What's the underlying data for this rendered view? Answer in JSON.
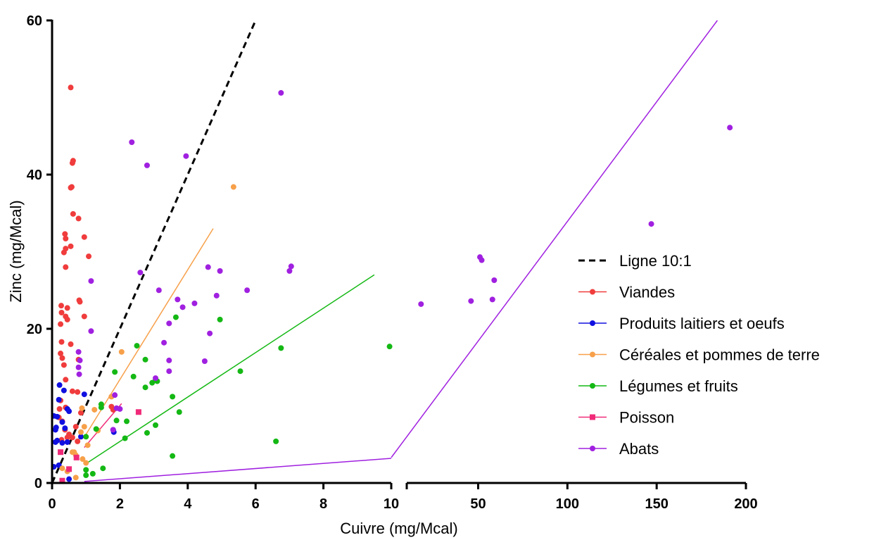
{
  "chart_data": {
    "type": "scatter",
    "title": "",
    "xlabel": "Cuivre (mg/Mcal)",
    "ylabel": "Zinc (mg/Mcal)",
    "ylim": [
      0,
      60
    ],
    "y_ticks": [
      "0",
      "20",
      "40",
      "60"
    ],
    "x_axis_segments": [
      {
        "range": [
          0,
          10
        ],
        "ticks": [
          "0",
          "2",
          "4",
          "6",
          "8",
          "10"
        ]
      },
      {
        "range": [
          10,
          200
        ],
        "ticks": [
          "50",
          "100",
          "150",
          "200"
        ]
      }
    ],
    "grid": false,
    "legend_position": "right",
    "legend": [
      {
        "label": "Ligne 10:1",
        "color": "#000000",
        "style": "dashed"
      },
      {
        "label": "Viandes",
        "color": "#f03c3c",
        "marker": "circle"
      },
      {
        "label": "Produits laitiers et oeufs",
        "color": "#1010e0",
        "marker": "circle"
      },
      {
        "label": "Céréales et pommes de terre",
        "color": "#f7a04a",
        "marker": "circle"
      },
      {
        "label": "Légumes et fruits",
        "color": "#14b814",
        "marker": "circle"
      },
      {
        "label": "Poisson",
        "color": "#f02a78",
        "marker": "square"
      },
      {
        "label": "Abats",
        "color": "#a020e0",
        "marker": "circle"
      }
    ],
    "reference_line": {
      "name": "Ligne 10:1",
      "x": [
        0,
        6
      ],
      "y": [
        0,
        60
      ]
    },
    "series": [
      {
        "name": "Viandes",
        "color": "#f03c3c",
        "marker": "circle",
        "points": [
          [
            0.55,
            51.3
          ],
          [
            0.62,
            41.8
          ],
          [
            0.6,
            41.5
          ],
          [
            0.55,
            38.3
          ],
          [
            0.58,
            38.4
          ],
          [
            0.62,
            34.9
          ],
          [
            0.78,
            34.3
          ],
          [
            0.38,
            32.3
          ],
          [
            0.4,
            31.7
          ],
          [
            0.95,
            31.9
          ],
          [
            0.55,
            30.7
          ],
          [
            0.4,
            30.4
          ],
          [
            0.35,
            29.9
          ],
          [
            1.08,
            29.4
          ],
          [
            0.4,
            28.0
          ],
          [
            0.27,
            23.0
          ],
          [
            0.45,
            22.7
          ],
          [
            0.28,
            22.1
          ],
          [
            0.4,
            21.6
          ],
          [
            0.45,
            21.2
          ],
          [
            0.95,
            21.6
          ],
          [
            0.8,
            23.7
          ],
          [
            0.82,
            23.5
          ],
          [
            0.25,
            20.6
          ],
          [
            0.28,
            18.3
          ],
          [
            0.55,
            18.0
          ],
          [
            0.25,
            16.8
          ],
          [
            0.3,
            16.2
          ],
          [
            0.35,
            15.3
          ],
          [
            0.78,
            16.0
          ],
          [
            0.4,
            13.4
          ],
          [
            0.6,
            11.9
          ],
          [
            0.25,
            10.7
          ],
          [
            0.75,
            11.8
          ],
          [
            0.22,
            9.6
          ],
          [
            0.4,
            9.8
          ],
          [
            0.2,
            8.5
          ],
          [
            0.3,
            8.0
          ],
          [
            0.85,
            9.1
          ],
          [
            0.38,
            6.9
          ],
          [
            0.5,
            6.3
          ],
          [
            0.28,
            5.6
          ],
          [
            0.45,
            5.9
          ],
          [
            0.6,
            5.9
          ],
          [
            0.75,
            5.4
          ],
          [
            0.7,
            7.3
          ],
          [
            1.75,
            9.9
          ],
          [
            1.8,
            9.5
          ]
        ]
      },
      {
        "name": "Produits laitiers et oeufs",
        "color": "#1010e0",
        "marker": "circle",
        "points": [
          [
            0.22,
            12.7
          ],
          [
            0.35,
            12.0
          ],
          [
            0.95,
            11.5
          ],
          [
            0.2,
            10.8
          ],
          [
            0.05,
            8.7
          ],
          [
            0.15,
            8.6
          ],
          [
            0.3,
            7.9
          ],
          [
            0.12,
            7.2
          ],
          [
            0.1,
            6.9
          ],
          [
            0.38,
            7.1
          ],
          [
            0.5,
            9.3
          ],
          [
            0.85,
            6.0
          ],
          [
            0.1,
            5.3
          ],
          [
            0.15,
            5.5
          ],
          [
            0.3,
            5.2
          ],
          [
            0.05,
            2.1
          ],
          [
            0.2,
            2.3
          ],
          [
            0.5,
            0.5
          ],
          [
            1.8,
            6.9
          ],
          [
            1.82,
            6.6
          ],
          [
            0.45,
            5.3
          ],
          [
            0.45,
            9.6
          ]
        ]
      },
      {
        "name": "Céréales et pommes de terre",
        "color": "#f7a04a",
        "marker": "circle",
        "points": [
          [
            5.35,
            38.4
          ],
          [
            2.05,
            17.0
          ],
          [
            1.25,
            9.5
          ],
          [
            1.75,
            11.2
          ],
          [
            0.95,
            7.3
          ],
          [
            1.35,
            6.8
          ],
          [
            0.85,
            6.6
          ],
          [
            0.3,
            1.9
          ],
          [
            0.45,
            1.5
          ],
          [
            0.65,
            4.0
          ],
          [
            0.7,
            3.6
          ],
          [
            0.9,
            3.1
          ],
          [
            1.05,
            4.9
          ],
          [
            0.7,
            0.7
          ],
          [
            1.0,
            2.6
          ],
          [
            0.88,
            9.7
          ],
          [
            0.6,
            4.0
          ]
        ]
      },
      {
        "name": "Légumes et fruits",
        "color": "#14b814",
        "marker": "circle",
        "points": [
          [
            9.95,
            17.7
          ],
          [
            6.75,
            17.5
          ],
          [
            5.55,
            14.5
          ],
          [
            4.95,
            21.2
          ],
          [
            3.65,
            21.5
          ],
          [
            3.55,
            11.2
          ],
          [
            3.55,
            3.5
          ],
          [
            2.5,
            17.8
          ],
          [
            2.75,
            16.0
          ],
          [
            2.95,
            13.0
          ],
          [
            3.05,
            13.3
          ],
          [
            3.1,
            13.2
          ],
          [
            2.75,
            12.4
          ],
          [
            2.4,
            13.8
          ],
          [
            1.85,
            14.4
          ],
          [
            1.45,
            9.8
          ],
          [
            1.9,
            8.1
          ],
          [
            2.2,
            8.0
          ],
          [
            2.8,
            6.5
          ],
          [
            3.05,
            7.5
          ],
          [
            3.75,
            9.2
          ],
          [
            2.15,
            5.8
          ],
          [
            1.3,
            7.0
          ],
          [
            1.0,
            6.0
          ],
          [
            1.0,
            1.7
          ],
          [
            1.0,
            1.0
          ],
          [
            1.2,
            1.2
          ],
          [
            1.5,
            1.9
          ],
          [
            6.6,
            5.4
          ],
          [
            1.45,
            10.2
          ]
        ]
      },
      {
        "name": "Poisson",
        "color": "#f02a78",
        "marker": "square",
        "points": [
          [
            2.55,
            9.2
          ],
          [
            0.25,
            4.0
          ],
          [
            0.72,
            3.3
          ],
          [
            0.5,
            1.8
          ],
          [
            0.3,
            0.3
          ]
        ]
      },
      {
        "name": "Abats",
        "color": "#a020e0",
        "marker": "circle",
        "points": [
          [
            6.75,
            50.6
          ],
          [
            2.35,
            44.2
          ],
          [
            3.95,
            42.4
          ],
          [
            2.8,
            41.2
          ],
          [
            2.6,
            27.3
          ],
          [
            3.15,
            25.0
          ],
          [
            3.7,
            23.8
          ],
          [
            3.85,
            22.8
          ],
          [
            4.2,
            23.3
          ],
          [
            3.45,
            20.7
          ],
          [
            3.3,
            18.2
          ],
          [
            3.45,
            15.9
          ],
          [
            3.45,
            14.5
          ],
          [
            4.6,
            28.0
          ],
          [
            4.95,
            27.5
          ],
          [
            4.85,
            24.3
          ],
          [
            5.75,
            25.0
          ],
          [
            7.05,
            28.1
          ],
          [
            7.0,
            27.5
          ],
          [
            4.65,
            19.4
          ],
          [
            4.5,
            15.8
          ],
          [
            3.05,
            13.6
          ],
          [
            1.15,
            26.2
          ],
          [
            1.15,
            19.7
          ],
          [
            0.78,
            17.0
          ],
          [
            0.82,
            15.9
          ],
          [
            0.78,
            15.0
          ],
          [
            0.8,
            14.1
          ],
          [
            1.85,
            11.4
          ],
          [
            1.9,
            9.7
          ],
          [
            2.0,
            9.6
          ],
          [
            1.8,
            6.9
          ],
          [
            191,
            46.1
          ],
          [
            147,
            33.6
          ],
          [
            51,
            29.3
          ],
          [
            52,
            28.9
          ],
          [
            59,
            26.3
          ],
          [
            58,
            23.8
          ],
          [
            46,
            23.6
          ],
          [
            18,
            23.2
          ]
        ]
      }
    ],
    "fit_lines": [
      {
        "series": "Céréales et pommes de terre",
        "color": "#f7a04a",
        "x": [
          1,
          4.75
        ],
        "y": [
          6.3,
          33.0
        ]
      },
      {
        "series": "Légumes et fruits",
        "color": "#14b814",
        "x": [
          1,
          9.5
        ],
        "y": [
          2.5,
          27.0
        ]
      },
      {
        "series": "Poisson",
        "color": "#f02a78",
        "x": [
          0.95,
          2.05
        ],
        "y": [
          4.6,
          10.3
        ]
      },
      {
        "series": "Abats",
        "color": "#a020e0",
        "x": [
          0.95,
          10
        ],
        "y": [
          0.2,
          3.2
        ]
      },
      {
        "series": "Abats",
        "color": "#a020e0",
        "x": [
          10,
          184
        ],
        "y": [
          3.3,
          60
        ]
      }
    ]
  }
}
